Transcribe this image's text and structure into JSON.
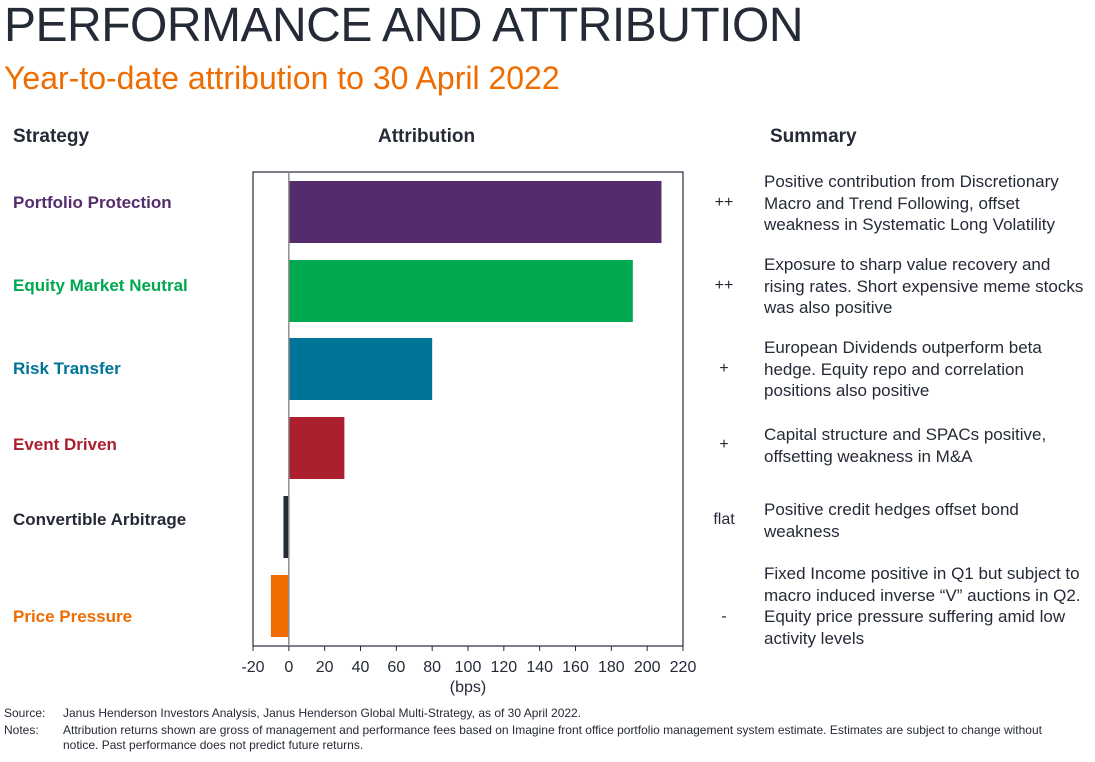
{
  "header": {
    "title": "PERFORMANCE AND ATTRIBUTION",
    "subtitle": "Year-to-date attribution to 30 April 2022"
  },
  "columns": {
    "strategy": "Strategy",
    "attribution": "Attribution",
    "summary": "Summary"
  },
  "rows": [
    {
      "strategy": "Portfolio Protection",
      "color": "#542c6c",
      "signal": "++",
      "summary": "Positive contribution from Discretionary Macro and Trend Following, offset weakness in Systematic Long Volatility"
    },
    {
      "strategy": "Equity Market Neutral",
      "color": "#00a84f",
      "signal": "++",
      "summary": "Exposure to sharp value recovery and rising rates. Short expensive meme stocks was also positive"
    },
    {
      "strategy": "Risk Transfer",
      "color": "#007398",
      "signal": "+",
      "summary": "European Dividends outperform beta hedge. Equity repo and correlation positions also positive"
    },
    {
      "strategy": "Event Driven",
      "color": "#ab1f2e",
      "signal": "+",
      "summary": "Capital structure and SPACs positive, offsetting weakness in M&A"
    },
    {
      "strategy": "Convertible Arbitrage",
      "color": "#252a37",
      "signal": "flat",
      "summary": "Positive credit hedges offset bond weakness"
    },
    {
      "strategy": "Price Pressure",
      "color": "#ef6c00",
      "signal": "-",
      "summary": "Fixed Income positive in Q1 but subject to macro induced inverse “V” auctions in Q2. Equity price pressure suffering amid low activity levels"
    }
  ],
  "chart_data": {
    "type": "bar",
    "orientation": "horizontal",
    "title": "Attribution",
    "xlabel": "(bps)",
    "ylabel": "",
    "categories": [
      "Portfolio Protection",
      "Equity Market Neutral",
      "Risk Transfer",
      "Event Driven",
      "Convertible Arbitrage",
      "Price Pressure"
    ],
    "values": [
      208,
      192,
      80,
      31,
      -3,
      -10
    ],
    "colors": [
      "#542c6c",
      "#00a84f",
      "#007398",
      "#ab1f2e",
      "#252a37",
      "#ef6c00"
    ],
    "xlim": [
      -20,
      220
    ],
    "xticks": [
      -20,
      0,
      20,
      40,
      60,
      80,
      100,
      120,
      140,
      160,
      180,
      200,
      220
    ],
    "grid": false,
    "legend": "none"
  },
  "footer": {
    "source_label": "Source:",
    "source_text": "Janus Henderson Investors Analysis, Janus Henderson Global Multi-Strategy, as of 30 April 2022.",
    "notes_label": "Notes:",
    "notes_text": "Attribution returns shown are gross of management and performance fees based on Imagine front office portfolio management system estimate. Estimates are subject to change without notice. Past performance does not predict future returns."
  }
}
